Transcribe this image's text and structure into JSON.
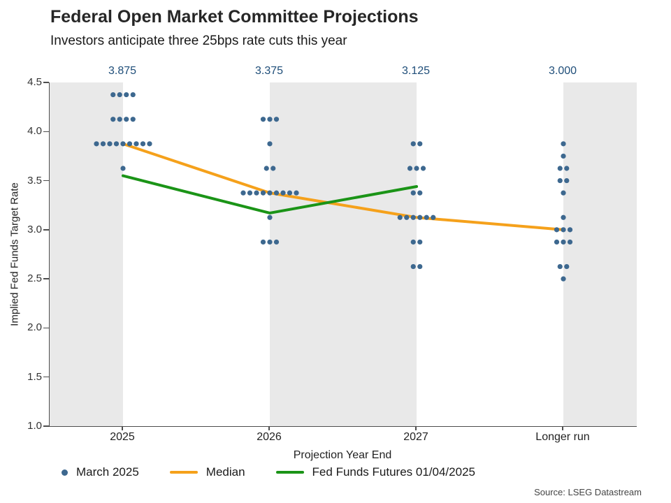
{
  "chart_data": {
    "type": "scatter",
    "title": "Federal Open Market Committee Projections",
    "subtitle": "Investors anticipate three 25bps rate cuts this year",
    "xlabel": "Projection Year End",
    "ylabel": "Implied Fed Funds Target Rate",
    "ylim": [
      1.0,
      4.5
    ],
    "yticks": [
      "4.5",
      "4.0",
      "3.5",
      "3.0",
      "2.5",
      "2.0",
      "1.5",
      "1.0"
    ],
    "categories": [
      "2025",
      "2026",
      "2027",
      "Longer run"
    ],
    "top_median_labels": [
      "3.875",
      "3.375",
      "3.125",
      "3.000"
    ],
    "grid": false,
    "legend_position": "bottom",
    "band_colors": {
      "gray": "#e9e9e9",
      "white": "#ffffff"
    },
    "accent_colors": {
      "dots": "#3d688f",
      "median": "#f5a11b",
      "futures": "#1b9417",
      "top_labels": "#1f4e79"
    },
    "series": [
      {
        "name": "March 2025",
        "type": "dot_plot",
        "color": "#3d688f",
        "dots": [
          {
            "category": "2025",
            "rows": [
              {
                "rate": 4.375,
                "count": 4
              },
              {
                "rate": 4.125,
                "count": 4
              },
              {
                "rate": 3.875,
                "count": 9
              },
              {
                "rate": 3.625,
                "count": 1
              }
            ]
          },
          {
            "category": "2026",
            "rows": [
              {
                "rate": 4.125,
                "count": 3
              },
              {
                "rate": 3.875,
                "count": 1
              },
              {
                "rate": 3.625,
                "count": 2
              },
              {
                "rate": 3.375,
                "count": 9
              },
              {
                "rate": 3.125,
                "count": 1
              },
              {
                "rate": 2.875,
                "count": 3
              }
            ]
          },
          {
            "category": "2027",
            "rows": [
              {
                "rate": 3.875,
                "count": 2
              },
              {
                "rate": 3.625,
                "count": 3
              },
              {
                "rate": 3.375,
                "count": 2
              },
              {
                "rate": 3.125,
                "count": 6
              },
              {
                "rate": 2.875,
                "count": 2
              },
              {
                "rate": 2.625,
                "count": 2
              }
            ]
          },
          {
            "category": "Longer run",
            "rows": [
              {
                "rate": 3.875,
                "count": 1
              },
              {
                "rate": 3.75,
                "count": 1
              },
              {
                "rate": 3.625,
                "count": 2
              },
              {
                "rate": 3.5,
                "count": 2
              },
              {
                "rate": 3.375,
                "count": 1
              },
              {
                "rate": 3.125,
                "count": 1
              },
              {
                "rate": 3.0,
                "count": 3
              },
              {
                "rate": 2.875,
                "count": 3
              },
              {
                "rate": 2.625,
                "count": 2
              },
              {
                "rate": 2.5,
                "count": 1
              }
            ]
          }
        ]
      },
      {
        "name": "Median",
        "type": "line",
        "color": "#f5a11b",
        "values": [
          3.875,
          3.375,
          3.125,
          3.0
        ]
      },
      {
        "name": "Fed Funds Futures 01/04/2025",
        "type": "line",
        "color": "#1b9417",
        "values": [
          3.55,
          3.17,
          3.44,
          null
        ]
      }
    ],
    "source": "Source: LSEG Datastream"
  }
}
